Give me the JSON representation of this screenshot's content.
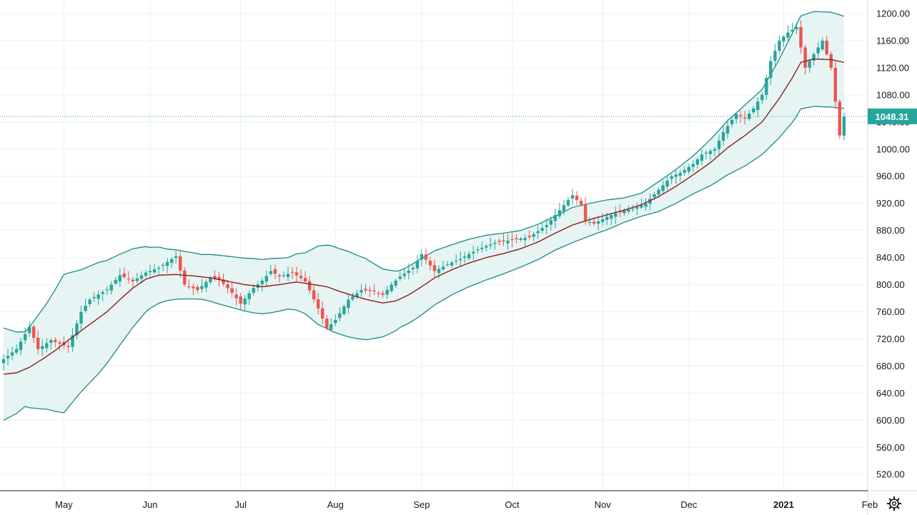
{
  "chart_data": {
    "type": "candlestick",
    "symbol_price_label": "1048.31",
    "y_axis": {
      "min": 496,
      "max": 1220,
      "ticks": [
        520,
        560,
        600,
        640,
        680,
        720,
        760,
        800,
        840,
        880,
        920,
        960,
        1000,
        1040,
        1080,
        1120,
        1160,
        1200
      ],
      "tick_labels": [
        "520.00",
        "560.00",
        "600.00",
        "640.00",
        "680.00",
        "720.00",
        "760.00",
        "800.00",
        "840.00",
        "880.00",
        "920.00",
        "960.00",
        "1000.00",
        "1040.00",
        "1080.00",
        "1120.00",
        "1160.00",
        "1200.00"
      ]
    },
    "x_axis": {
      "bar_count": 200,
      "labels": [
        {
          "text": "May",
          "bar": 14,
          "bold": false
        },
        {
          "text": "Jun",
          "bar": 34,
          "bold": false
        },
        {
          "text": "Jul",
          "bar": 55,
          "bold": false
        },
        {
          "text": "Aug",
          "bar": 77,
          "bold": false
        },
        {
          "text": "Sep",
          "bar": 97,
          "bold": false
        },
        {
          "text": "Oct",
          "bar": 118,
          "bold": false
        },
        {
          "text": "Nov",
          "bar": 139,
          "bold": false
        },
        {
          "text": "Dec",
          "bar": 159,
          "bold": false
        },
        {
          "text": "2021",
          "bar": 181,
          "bold": true
        },
        {
          "text": "Feb",
          "bar": 201,
          "bold": false
        }
      ]
    },
    "price_keypoints": [
      [
        0,
        690
      ],
      [
        3,
        705
      ],
      [
        6,
        738
      ],
      [
        8,
        705
      ],
      [
        11,
        718
      ],
      [
        15,
        708
      ],
      [
        18,
        760
      ],
      [
        20,
        778
      ],
      [
        24,
        793
      ],
      [
        27,
        814
      ],
      [
        30,
        805
      ],
      [
        33,
        818
      ],
      [
        36,
        825
      ],
      [
        40,
        842
      ],
      [
        42,
        800
      ],
      [
        45,
        792
      ],
      [
        48,
        810
      ],
      [
        50,
        808
      ],
      [
        53,
        788
      ],
      [
        55,
        772
      ],
      [
        58,
        795
      ],
      [
        60,
        806
      ],
      [
        62,
        820
      ],
      [
        64,
        812
      ],
      [
        67,
        818
      ],
      [
        70,
        805
      ],
      [
        73,
        765
      ],
      [
        75,
        735
      ],
      [
        77,
        748
      ],
      [
        80,
        778
      ],
      [
        83,
        792
      ],
      [
        86,
        790
      ],
      [
        88,
        785
      ],
      [
        90,
        800
      ],
      [
        92,
        812
      ],
      [
        95,
        825
      ],
      [
        97,
        845
      ],
      [
        100,
        820
      ],
      [
        103,
        830
      ],
      [
        106,
        838
      ],
      [
        110,
        852
      ],
      [
        114,
        862
      ],
      [
        118,
        866
      ],
      [
        122,
        870
      ],
      [
        126,
        888
      ],
      [
        129,
        910
      ],
      [
        132,
        932
      ],
      [
        134,
        918
      ],
      [
        135,
        895
      ],
      [
        137,
        890
      ],
      [
        140,
        900
      ],
      [
        143,
        908
      ],
      [
        146,
        912
      ],
      [
        149,
        920
      ],
      [
        152,
        940
      ],
      [
        155,
        960
      ],
      [
        157,
        965
      ],
      [
        160,
        978
      ],
      [
        162,
        992
      ],
      [
        165,
        1000
      ],
      [
        167,
        1025
      ],
      [
        170,
        1052
      ],
      [
        172,
        1045
      ],
      [
        174,
        1060
      ],
      [
        176,
        1080
      ],
      [
        178,
        1130
      ],
      [
        180,
        1160
      ],
      [
        182,
        1172
      ],
      [
        184,
        1180
      ],
      [
        186,
        1120
      ],
      [
        188,
        1140
      ],
      [
        190,
        1160
      ],
      [
        192,
        1120
      ],
      [
        194,
        1020
      ],
      [
        195,
        1048
      ]
    ],
    "sma_keypoints": [
      [
        0,
        668
      ],
      [
        3,
        670
      ],
      [
        6,
        678
      ],
      [
        9,
        690
      ],
      [
        12,
        703
      ],
      [
        15,
        718
      ],
      [
        18,
        732
      ],
      [
        21,
        746
      ],
      [
        24,
        760
      ],
      [
        27,
        778
      ],
      [
        30,
        795
      ],
      [
        33,
        808
      ],
      [
        36,
        814
      ],
      [
        40,
        815
      ],
      [
        44,
        813
      ],
      [
        48,
        810
      ],
      [
        52,
        805
      ],
      [
        56,
        800
      ],
      [
        60,
        797
      ],
      [
        64,
        800
      ],
      [
        68,
        804
      ],
      [
        72,
        800
      ],
      [
        75,
        797
      ],
      [
        78,
        790
      ],
      [
        82,
        782
      ],
      [
        85,
        777
      ],
      [
        88,
        773
      ],
      [
        91,
        776
      ],
      [
        94,
        785
      ],
      [
        97,
        797
      ],
      [
        100,
        810
      ],
      [
        104,
        822
      ],
      [
        108,
        832
      ],
      [
        112,
        840
      ],
      [
        116,
        846
      ],
      [
        120,
        853
      ],
      [
        124,
        863
      ],
      [
        128,
        876
      ],
      [
        132,
        888
      ],
      [
        136,
        896
      ],
      [
        140,
        903
      ],
      [
        144,
        910
      ],
      [
        148,
        918
      ],
      [
        152,
        930
      ],
      [
        156,
        945
      ],
      [
        160,
        962
      ],
      [
        164,
        980
      ],
      [
        168,
        1002
      ],
      [
        172,
        1020
      ],
      [
        176,
        1040
      ],
      [
        180,
        1075
      ],
      [
        183,
        1105
      ],
      [
        185,
        1128
      ],
      [
        188,
        1133
      ],
      [
        192,
        1132
      ],
      [
        195,
        1128
      ]
    ],
    "band_width_keypoints": [
      [
        0,
        68
      ],
      [
        5,
        55
      ],
      [
        10,
        78
      ],
      [
        14,
        102
      ],
      [
        18,
        90
      ],
      [
        22,
        82
      ],
      [
        26,
        70
      ],
      [
        30,
        58
      ],
      [
        34,
        45
      ],
      [
        38,
        38
      ],
      [
        42,
        35
      ],
      [
        46,
        33
      ],
      [
        50,
        36
      ],
      [
        54,
        38
      ],
      [
        58,
        40
      ],
      [
        62,
        40
      ],
      [
        66,
        38
      ],
      [
        70,
        45
      ],
      [
        73,
        58
      ],
      [
        76,
        63
      ],
      [
        80,
        63
      ],
      [
        84,
        60
      ],
      [
        88,
        50
      ],
      [
        92,
        42
      ],
      [
        96,
        42
      ],
      [
        100,
        40
      ],
      [
        104,
        37
      ],
      [
        108,
        35
      ],
      [
        112,
        33
      ],
      [
        116,
        30
      ],
      [
        120,
        27
      ],
      [
        124,
        26
      ],
      [
        128,
        25
      ],
      [
        132,
        26
      ],
      [
        136,
        24
      ],
      [
        140,
        22
      ],
      [
        144,
        18
      ],
      [
        148,
        17
      ],
      [
        152,
        22
      ],
      [
        156,
        25
      ],
      [
        160,
        28
      ],
      [
        164,
        34
      ],
      [
        168,
        40
      ],
      [
        172,
        45
      ],
      [
        176,
        48
      ],
      [
        180,
        58
      ],
      [
        184,
        68
      ],
      [
        188,
        70
      ],
      [
        192,
        70
      ],
      [
        195,
        68
      ]
    ],
    "colors": {
      "up": "#26a69a",
      "down": "#ef5350",
      "sma": "#8b1e1e",
      "band": "#1c8b83",
      "band_fill": "#e6f4f3",
      "grid": "#eef0f3",
      "axis_line": "#131722",
      "price_line": "#26a69a"
    }
  },
  "ui": {
    "settings_icon": "gear-icon"
  }
}
